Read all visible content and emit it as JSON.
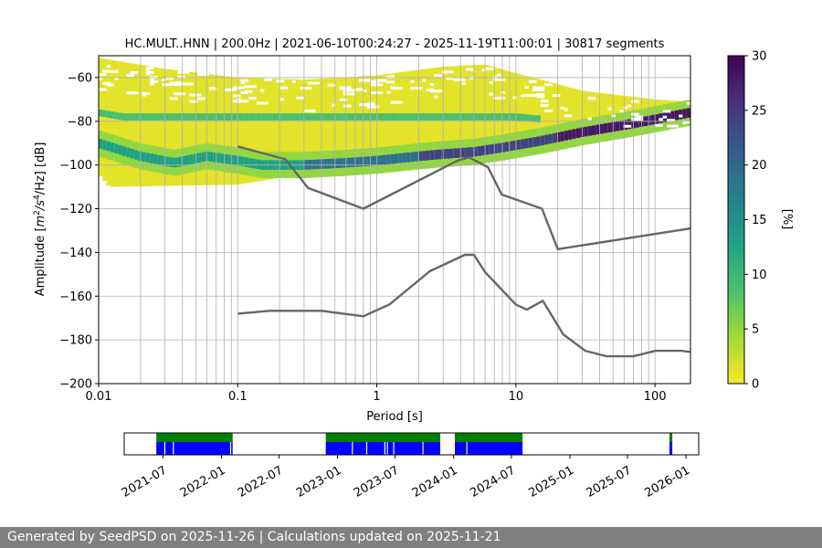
{
  "chart_data": [
    {
      "type": "heatmap",
      "title": "HC.MULT..HNN | 200.0Hz | 2021-06-10T00:24:27 - 2025-11-19T11:00:01 | 30817 segments",
      "xlabel": "Period [s]",
      "ylabel_parts": [
        "Amplitude [",
        "m",
        "2",
        "/s",
        "4",
        "/Hz] [dB]"
      ],
      "xscale": "log",
      "xlim": [
        0.01,
        180
      ],
      "ylim": [
        -200,
        -50
      ],
      "x_ticks": [
        {
          "value": 0.01,
          "label": "0.01"
        },
        {
          "value": 0.1,
          "label": "0.1"
        },
        {
          "value": 1,
          "label": "1"
        },
        {
          "value": 10,
          "label": "10"
        },
        {
          "value": 100,
          "label": "100"
        }
      ],
      "y_ticks": [
        {
          "value": -60,
          "label": "−60"
        },
        {
          "value": -80,
          "label": "−80"
        },
        {
          "value": -100,
          "label": "−100"
        },
        {
          "value": -120,
          "label": "−120"
        },
        {
          "value": -140,
          "label": "−140"
        },
        {
          "value": -160,
          "label": "−160"
        },
        {
          "value": -180,
          "label": "−180"
        },
        {
          "value": -200,
          "label": "−200"
        }
      ],
      "grid": true,
      "vertical_grid_periods": [
        0.02,
        0.03,
        0.04,
        0.05,
        0.06,
        0.07,
        0.08,
        0.09,
        0.2,
        0.3,
        0.4,
        0.5,
        0.6,
        0.7,
        0.8,
        0.9,
        2,
        3,
        4,
        5,
        6,
        7,
        8,
        9,
        20,
        30,
        40,
        50,
        60,
        70,
        80,
        90
      ],
      "colorbar": {
        "label": "[%]",
        "min": 0,
        "max": 30,
        "ticks": [
          {
            "value": 0,
            "label": "0"
          },
          {
            "value": 5,
            "label": "5"
          },
          {
            "value": 10,
            "label": "10"
          },
          {
            "value": 15,
            "label": "15"
          },
          {
            "value": 20,
            "label": "20"
          },
          {
            "value": 25,
            "label": "25"
          },
          {
            "value": 30,
            "label": "30"
          }
        ],
        "stops": [
          "#fde725",
          "#a0da39",
          "#4ac16d",
          "#1fa187",
          "#277f8e",
          "#365c8d",
          "#46327e",
          "#440154"
        ]
      },
      "density_ridges": [
        {
          "name": "microseism band",
          "points": [
            [
              0.01,
              -90
            ],
            [
              0.02,
              -96
            ],
            [
              0.035,
              -99
            ],
            [
              0.06,
              -96
            ],
            [
              0.1,
              -98
            ],
            [
              0.15,
              -100
            ],
            [
              0.3,
              -100
            ],
            [
              0.6,
              -99
            ],
            [
              1,
              -98
            ],
            [
              2,
              -96
            ],
            [
              3,
              -95
            ],
            [
              5,
              -94
            ],
            [
              8,
              -92
            ],
            [
              15,
              -89
            ],
            [
              30,
              -85
            ],
            [
              70,
              -81
            ],
            [
              180,
              -76
            ]
          ],
          "core_start": 0.3,
          "coverage_lo": [
            0.01,
            0.012,
            0.1,
            0.5
          ],
          "coverage_lo_db": [
            -104,
            -110,
            -108,
            -100
          ]
        },
        {
          "name": "constant line",
          "points": [
            [
              0.01,
              -76
            ],
            [
              0.015,
              -78
            ],
            [
              10,
              -78
            ],
            [
              15,
              -79
            ]
          ],
          "core_start": 0.01
        }
      ],
      "noise_models": [
        {
          "name": "NHNM",
          "x": [
            0.1,
            0.22,
            0.32,
            0.8,
            3.8,
            4.6,
            6.3,
            7.9,
            15.4,
            20,
            180
          ],
          "y": [
            -91.5,
            -97.4,
            -110.5,
            -120,
            -98,
            -96.5,
            -101,
            -113.5,
            -120,
            -138.5,
            -129
          ]
        },
        {
          "name": "NLNM",
          "x": [
            0.1,
            0.17,
            0.4,
            0.8,
            1.24,
            2.4,
            4.3,
            5,
            6,
            10,
            12,
            15.6,
            21.9,
            31.6,
            45,
            70,
            101,
            154,
            180
          ],
          "y": [
            -168,
            -166.7,
            -166.7,
            -169.2,
            -163.7,
            -148.6,
            -141.1,
            -141.1,
            -149,
            -163.8,
            -166.2,
            -162.1,
            -177.5,
            -185,
            -187.5,
            -187.5,
            -185,
            -185,
            -185.5
          ]
        }
      ]
    },
    {
      "type": "timeline",
      "date_ticks": [
        "2021-07",
        "2022-01",
        "2022-07",
        "2023-01",
        "2023-07",
        "2024-01",
        "2024-07",
        "2025-01",
        "2025-07",
        "2026-01"
      ],
      "xlim": [
        "2021-03-01",
        "2026-02-10"
      ],
      "colors": {
        "coverage": "#0000ff",
        "availability": "#008000"
      },
      "coverage_segments": [
        [
          "2021-06-10",
          "2022-02-05"
        ],
        [
          "2022-11-25",
          "2023-11-20"
        ],
        [
          "2024-01-05",
          "2024-08-05"
        ],
        [
          "2025-11-10",
          "2025-11-19"
        ]
      ],
      "gaps": [
        "2021-07-05",
        "2021-08-01",
        "2022-01-28",
        "2023-02-15",
        "2023-04-01",
        "2023-05-28",
        "2023-06-05",
        "2023-06-25",
        "2023-09-25",
        "2024-02-10"
      ]
    }
  ],
  "footer": "Generated by SeedPSD on 2025-11-26 | Calculations updated on 2025-11-21"
}
